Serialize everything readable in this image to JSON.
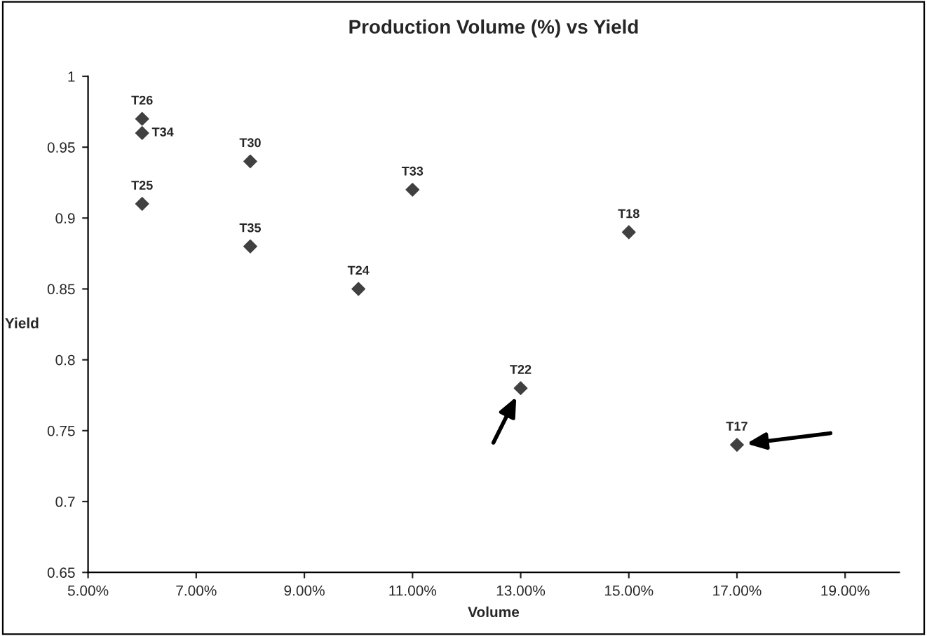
{
  "chart_data": {
    "type": "scatter",
    "title": "Production Volume (%) vs Yield",
    "xlabel": "Volume",
    "ylabel": "Yield",
    "x": [
      6,
      6,
      6,
      8,
      8,
      10,
      11,
      15,
      13,
      17
    ],
    "series": [
      {
        "color": "#404040",
        "values": [
          0.97,
          0.96,
          0.91,
          0.94,
          0.88,
          0.85,
          0.92,
          0.89,
          0.78,
          0.74
        ]
      }
    ],
    "marker": "diamond",
    "xlim": [
      5,
      20
    ],
    "xticks": [
      {
        "value": 5,
        "label": "5.00%"
      },
      {
        "value": 7,
        "label": "7.00%"
      },
      {
        "value": 9,
        "label": "9.00%"
      },
      {
        "value": 11,
        "label": "11.00%"
      },
      {
        "value": 13,
        "label": "13.00%"
      },
      {
        "value": 15,
        "label": "15.00%"
      },
      {
        "value": 17,
        "label": "17.00%"
      },
      {
        "value": 19,
        "label": "19.00%"
      }
    ],
    "ylim": [
      0.65,
      1
    ],
    "yticks": [
      0.65,
      0.7,
      0.75,
      0.8,
      0.85,
      0.9,
      0.95,
      1
    ],
    "grid": false,
    "annotations": [
      {
        "text": "T26",
        "x": 6,
        "y": 0.97
      },
      {
        "text": "T34",
        "x": 6,
        "y": 0.96
      },
      {
        "text": "T25",
        "x": 6,
        "y": 0.91
      },
      {
        "text": "T30",
        "x": 8,
        "y": 0.94
      },
      {
        "text": "T35",
        "x": 8,
        "y": 0.88
      },
      {
        "text": "T24",
        "x": 10,
        "y": 0.85
      },
      {
        "text": "T33",
        "x": 11,
        "y": 0.92
      },
      {
        "text": "T18",
        "x": 15,
        "y": 0.89
      },
      {
        "text": "T22",
        "x": 13,
        "y": 0.78
      },
      {
        "text": "T17",
        "x": 17,
        "y": 0.74
      }
    ]
  }
}
